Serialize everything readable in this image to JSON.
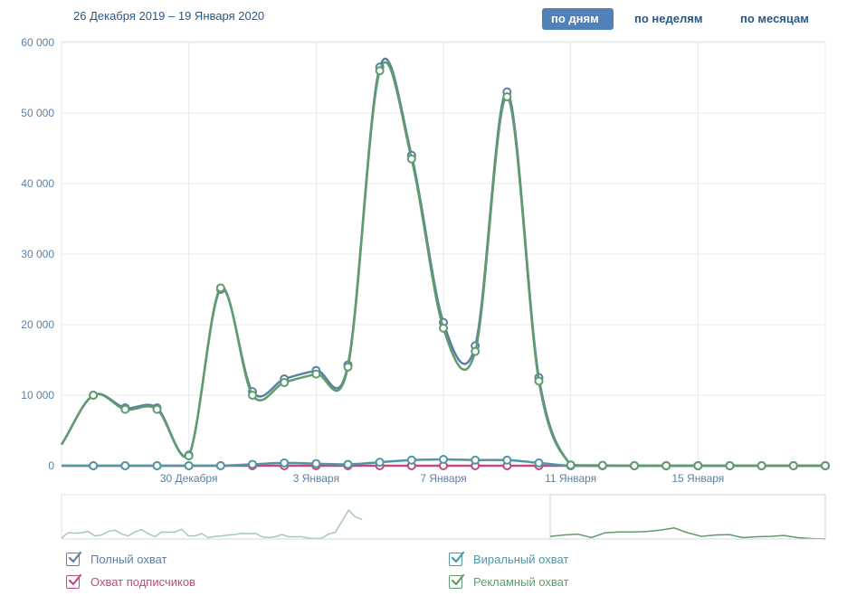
{
  "header": {
    "date_range": "26 Декабря 2019 – 19 Января 2020",
    "periods": [
      {
        "label": "по дням",
        "active": true
      },
      {
        "label": "по неделям",
        "active": false
      },
      {
        "label": "по месяцам",
        "active": false
      }
    ]
  },
  "chart_data": {
    "type": "line",
    "y_ticks": [
      "60 000",
      "50 000",
      "40 000",
      "30 000",
      "20 000",
      "10 000",
      "0"
    ],
    "ylim": [
      0,
      60000
    ],
    "x_tick_labels": [
      {
        "label": "30 Декабря",
        "day": 4
      },
      {
        "label": "3 Января",
        "day": 8
      },
      {
        "label": "7 Января",
        "day": 12
      },
      {
        "label": "11 Января",
        "day": 16
      },
      {
        "label": "15 Января",
        "day": 20
      }
    ],
    "x_days": [
      1,
      2,
      3,
      4,
      5,
      6,
      7,
      8,
      9,
      10,
      11,
      12,
      13,
      14,
      15,
      16,
      17,
      18,
      19,
      20,
      21,
      22,
      23,
      24
    ],
    "start_value_day0": 3000,
    "series": [
      {
        "name": "Полный охват",
        "color": "#5c7fa3",
        "values": [
          10000,
          8200,
          8200,
          1500,
          25000,
          10500,
          12300,
          13500,
          14300,
          56500,
          44000,
          20300,
          17000,
          53000,
          12500,
          100,
          50,
          0,
          0,
          0,
          0,
          0,
          0,
          0
        ]
      },
      {
        "name": "Рекламный охват",
        "color": "#5f9b6c",
        "values": [
          10000,
          8000,
          8000,
          1400,
          25200,
          10000,
          11800,
          13000,
          14000,
          56000,
          43500,
          19500,
          16200,
          52300,
          12000,
          100,
          50,
          0,
          0,
          0,
          0,
          0,
          0,
          0
        ]
      },
      {
        "name": "Виральный охват",
        "color": "#4e97a4",
        "values": [
          0,
          0,
          0,
          0,
          0,
          200,
          400,
          300,
          200,
          500,
          800,
          900,
          800,
          800,
          400,
          0,
          0,
          0,
          0,
          0,
          0,
          0,
          0,
          0
        ]
      },
      {
        "name": "Охват подписчиков",
        "color": "#bf4a82",
        "values": [
          0,
          0,
          0,
          0,
          0,
          0,
          0,
          0,
          0,
          0,
          0,
          0,
          0,
          0,
          0,
          0,
          0,
          0,
          0,
          0,
          0,
          0,
          0,
          0
        ]
      }
    ],
    "navigator": {
      "left_values": [
        2,
        14,
        13,
        14,
        17,
        7,
        9,
        17,
        20,
        11,
        7,
        16,
        21,
        12,
        5,
        16,
        15,
        16,
        22,
        7,
        7,
        12,
        3,
        6,
        7,
        9,
        10,
        13,
        12,
        13,
        5,
        3,
        5,
        10,
        5,
        5,
        5,
        2,
        1,
        2,
        11,
        15,
        40,
        65,
        50,
        44
      ],
      "right_values": [
        6,
        9,
        11,
        3,
        14,
        16,
        16,
        17,
        20,
        25,
        14,
        6,
        9,
        10,
        3,
        5,
        6,
        8,
        3,
        1,
        0
      ]
    },
    "legend": [
      {
        "label": "Полный охват",
        "color": "#5c7fa3",
        "checked": true
      },
      {
        "label": "Виральный охват",
        "color": "#4e97a4",
        "checked": true
      },
      {
        "label": "Охват подписчиков",
        "color": "#bf4a82",
        "checked": true
      },
      {
        "label": "Рекламный охват",
        "color": "#5f9b6c",
        "checked": true
      }
    ],
    "grid": true,
    "title": "",
    "xlabel": "",
    "ylabel": ""
  }
}
